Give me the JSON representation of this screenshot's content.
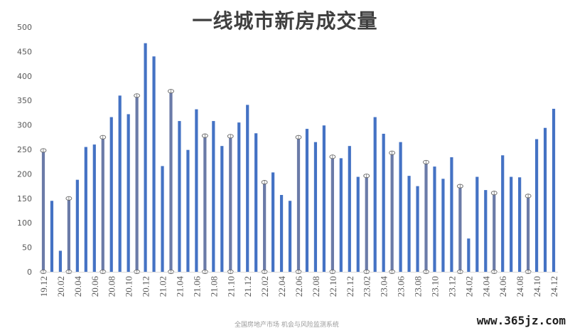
{
  "chart_data": {
    "type": "bar",
    "title": "一线城市新房成交量",
    "source": "全国房地产市场 机会与风险监测系统",
    "watermark": "www.365jz.com",
    "ylim": [
      0,
      500
    ],
    "yticks": [
      0,
      50,
      100,
      150,
      200,
      250,
      300,
      350,
      400,
      450,
      500
    ],
    "grid": false,
    "legend": "none",
    "bar_color": "#4472C4",
    "highlight_color": "#6B7BA8",
    "categories": [
      "19.12",
      "20.01",
      "20.02",
      "20.03",
      "20.04",
      "20.05",
      "20.06",
      "20.07",
      "20.08",
      "20.09",
      "20.10",
      "20.11",
      "20.12",
      "21.01",
      "21.02",
      "21.03",
      "21.04",
      "21.05",
      "21.06",
      "21.07",
      "21.08",
      "21.09",
      "21.10",
      "21.11",
      "21.12",
      "22.01",
      "22.02",
      "22.03",
      "22.04",
      "22.05",
      "22.06",
      "22.07",
      "22.08",
      "22.09",
      "22.10",
      "22.11",
      "22.12",
      "23.01",
      "23.02",
      "23.03",
      "23.04",
      "23.05",
      "23.06",
      "23.07",
      "23.08",
      "23.09",
      "23.10",
      "23.11",
      "23.12",
      "24.01",
      "24.02",
      "24.03",
      "24.04",
      "24.05",
      "24.06",
      "24.07",
      "24.08",
      "24.09",
      "24.10",
      "24.11",
      "24.12"
    ],
    "values": [
      248,
      145,
      43,
      150,
      188,
      255,
      260,
      275,
      316,
      360,
      322,
      360,
      467,
      440,
      216,
      369,
      308,
      249,
      332,
      278,
      308,
      257,
      277,
      305,
      341,
      283,
      183,
      203,
      157,
      145,
      275,
      292,
      265,
      299,
      235,
      232,
      257,
      194,
      196,
      316,
      282,
      243,
      265,
      196,
      175,
      224,
      215,
      190,
      234,
      175,
      68,
      194,
      167,
      161,
      238,
      194,
      193,
      155,
      271,
      294,
      333
    ],
    "highlighted": [
      "19.12",
      "20.03",
      "20.07",
      "20.11",
      "21.03",
      "21.07",
      "21.10",
      "22.02",
      "22.06",
      "22.10",
      "23.02",
      "23.05",
      "23.09",
      "24.01",
      "24.05",
      "24.09"
    ],
    "xtick_labels": [
      "19.12",
      "20.02",
      "20.04",
      "20.06",
      "20.08",
      "20.10",
      "20.12",
      "21.02",
      "21.04",
      "21.06",
      "21.08",
      "21.10",
      "21.12",
      "22.02",
      "22.04",
      "22.06",
      "22.08",
      "22.10",
      "22.12",
      "23.02",
      "23.04",
      "23.06",
      "23.08",
      "23.10",
      "23.12",
      "24.02",
      "24.04",
      "24.06",
      "24.08",
      "24.10",
      "24.12"
    ]
  }
}
